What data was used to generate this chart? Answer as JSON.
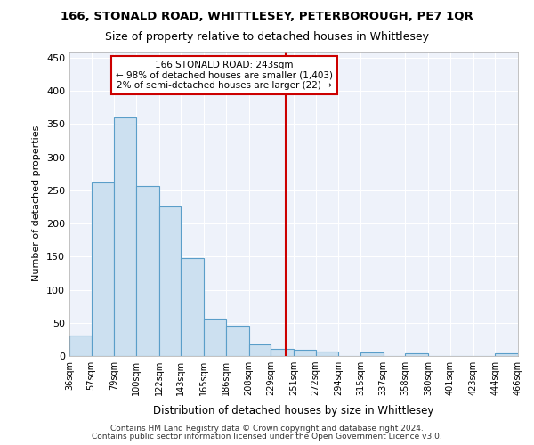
{
  "title1": "166, STONALD ROAD, WHITTLESEY, PETERBOROUGH, PE7 1QR",
  "title2": "Size of property relative to detached houses in Whittlesey",
  "xlabel": "Distribution of detached houses by size in Whittlesey",
  "ylabel": "Number of detached properties",
  "footer1": "Contains HM Land Registry data © Crown copyright and database right 2024.",
  "footer2": "Contains public sector information licensed under the Open Government Licence v3.0.",
  "annotation_title": "166 STONALD ROAD: 243sqm",
  "annotation_line1": "← 98% of detached houses are smaller (1,403)",
  "annotation_line2": "2% of semi-detached houses are larger (22) →",
  "property_size": 243,
  "bar_color": "#cce0f0",
  "bar_edge_color": "#5a9ec9",
  "vline_color": "#cc0000",
  "annotation_box_edge": "#cc0000",
  "background_color": "#eef2fa",
  "x_labels": [
    "36sqm",
    "57sqm",
    "79sqm",
    "100sqm",
    "122sqm",
    "143sqm",
    "165sqm",
    "186sqm",
    "208sqm",
    "229sqm",
    "251sqm",
    "272sqm",
    "294sqm",
    "315sqm",
    "337sqm",
    "358sqm",
    "380sqm",
    "401sqm",
    "423sqm",
    "444sqm",
    "466sqm"
  ],
  "bar_edges": [
    36,
    57,
    79,
    100,
    122,
    143,
    165,
    186,
    208,
    229,
    251,
    272,
    294,
    315,
    337,
    358,
    380,
    401,
    423,
    444,
    466
  ],
  "bar_heights": [
    31,
    262,
    360,
    257,
    225,
    148,
    57,
    45,
    18,
    11,
    10,
    7,
    0,
    6,
    0,
    4,
    0,
    0,
    0,
    4
  ],
  "ylim": [
    0,
    460
  ],
  "yticks": [
    0,
    50,
    100,
    150,
    200,
    250,
    300,
    350,
    400,
    450
  ]
}
